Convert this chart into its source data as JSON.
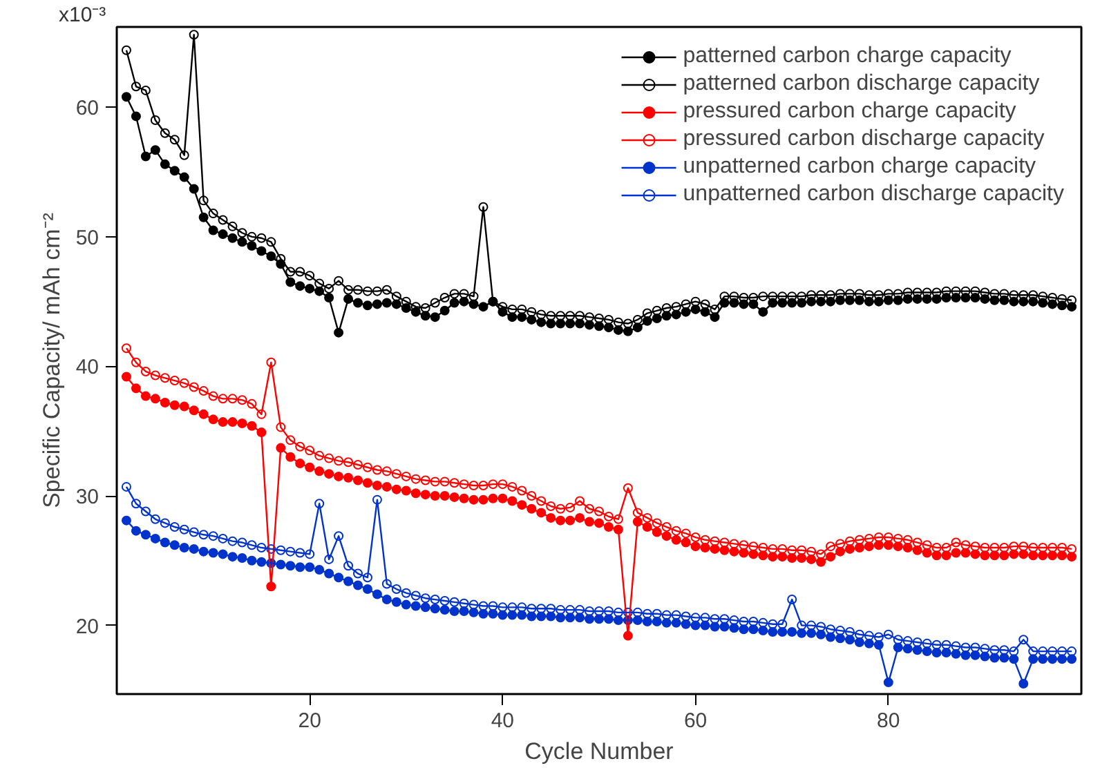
{
  "chart_data": {
    "type": "line",
    "xlabel": "Cycle Number",
    "ylabel": "Specific Capacity/ mAh cm⁻²",
    "xlim": [
      0,
      100
    ],
    "ylim": [
      14.7,
      66.2
    ],
    "xticks": [
      20,
      40,
      60,
      80
    ],
    "yticks": [
      20,
      30,
      40,
      50,
      60
    ],
    "annotations": [
      "x10⁻³"
    ],
    "grid": false,
    "legend": "top right",
    "line_style": "solid",
    "x": [
      1,
      2,
      3,
      4,
      5,
      6,
      7,
      8,
      9,
      10,
      11,
      12,
      13,
      14,
      15,
      16,
      17,
      18,
      19,
      20,
      21,
      22,
      23,
      24,
      25,
      26,
      27,
      28,
      29,
      30,
      31,
      32,
      33,
      34,
      35,
      36,
      37,
      38,
      39,
      40,
      41,
      42,
      43,
      44,
      45,
      46,
      47,
      48,
      49,
      50,
      51,
      52,
      53,
      54,
      55,
      56,
      57,
      58,
      59,
      60,
      61,
      62,
      63,
      64,
      65,
      66,
      67,
      68,
      69,
      70,
      71,
      72,
      73,
      74,
      75,
      76,
      77,
      78,
      79,
      80,
      81,
      82,
      83,
      84,
      85,
      86,
      87,
      88,
      89,
      90,
      91,
      92,
      93,
      94,
      95,
      96,
      97,
      98,
      99
    ],
    "series": [
      {
        "name": "patterned carbon charge capacity",
        "color": "#000000",
        "marker": "circle",
        "values": [
          60.8,
          59.3,
          56.2,
          56.7,
          55.6,
          55.1,
          54.6,
          53.7,
          51.5,
          50.5,
          50.2,
          49.9,
          49.6,
          49.3,
          48.9,
          48.5,
          47.9,
          46.5,
          46.2,
          46.0,
          45.8,
          45.3,
          42.6,
          45.2,
          44.9,
          44.7,
          44.8,
          44.9,
          44.8,
          44.5,
          44.2,
          43.9,
          43.8,
          44.3,
          44.9,
          45.0,
          44.8,
          44.6,
          45.0,
          44.2,
          43.8,
          43.8,
          43.6,
          43.4,
          43.3,
          43.3,
          43.3,
          43.3,
          43.2,
          43.1,
          43.0,
          42.8,
          42.7,
          43.0,
          43.5,
          43.7,
          43.9,
          44.0,
          44.2,
          44.4,
          44.2,
          43.8,
          44.9,
          44.9,
          44.8,
          44.8,
          44.2,
          44.9,
          44.9,
          44.9,
          44.9,
          45.0,
          45.0,
          45.0,
          45.1,
          45.1,
          45.1,
          45.0,
          45.0,
          45.1,
          45.1,
          45.2,
          45.2,
          45.2,
          45.2,
          45.3,
          45.3,
          45.3,
          45.3,
          45.2,
          45.1,
          45.1,
          45.0,
          45.0,
          45.0,
          44.9,
          44.8,
          44.7,
          44.6
        ]
      },
      {
        "name": "patterned carbon discharge capacity",
        "color": "#000000",
        "marker": "circle_open",
        "values": [
          64.4,
          61.6,
          61.3,
          59.0,
          58.0,
          57.5,
          56.3,
          65.6,
          52.8,
          51.8,
          51.3,
          50.8,
          50.3,
          50.0,
          49.9,
          49.6,
          48.3,
          47.3,
          47.3,
          47.0,
          46.4,
          46.0,
          46.6,
          45.9,
          45.9,
          45.8,
          45.8,
          45.9,
          45.4,
          45.0,
          44.6,
          44.5,
          44.9,
          45.3,
          45.6,
          45.6,
          45.4,
          52.3,
          45.0,
          44.6,
          44.4,
          44.4,
          44.2,
          44.0,
          43.9,
          43.9,
          43.9,
          43.9,
          43.8,
          43.7,
          43.6,
          43.4,
          43.3,
          43.6,
          44.1,
          44.3,
          44.5,
          44.6,
          44.8,
          45.0,
          44.8,
          44.4,
          45.4,
          45.4,
          45.3,
          45.3,
          45.4,
          45.4,
          45.4,
          45.4,
          45.4,
          45.5,
          45.5,
          45.5,
          45.6,
          45.6,
          45.6,
          45.5,
          45.5,
          45.6,
          45.6,
          45.7,
          45.7,
          45.7,
          45.7,
          45.8,
          45.8,
          45.8,
          45.8,
          45.7,
          45.6,
          45.6,
          45.5,
          45.5,
          45.5,
          45.4,
          45.3,
          45.2,
          45.1
        ]
      },
      {
        "name": "pressured carbon charge capacity",
        "color": "#ff0000",
        "marker": "circle",
        "values": [
          39.2,
          38.3,
          37.7,
          37.5,
          37.2,
          37.0,
          36.9,
          36.6,
          36.3,
          35.9,
          35.7,
          35.7,
          35.6,
          35.4,
          34.9,
          23.0,
          33.7,
          33.0,
          32.5,
          32.2,
          31.9,
          31.7,
          31.5,
          31.4,
          31.2,
          31.0,
          30.8,
          30.7,
          30.5,
          30.4,
          30.2,
          30.1,
          30.0,
          30.0,
          29.9,
          29.8,
          29.7,
          29.7,
          29.8,
          29.8,
          29.6,
          29.3,
          29.0,
          28.7,
          28.3,
          28.1,
          28.1,
          28.3,
          28.0,
          27.9,
          27.6,
          27.4,
          19.2,
          28.0,
          27.6,
          27.2,
          26.9,
          26.6,
          26.4,
          26.1,
          26.0,
          25.9,
          25.8,
          25.7,
          25.6,
          25.5,
          25.4,
          25.3,
          25.3,
          25.2,
          25.2,
          25.1,
          24.9,
          25.3,
          25.7,
          25.9,
          26.0,
          26.1,
          26.2,
          26.2,
          26.1,
          26.0,
          25.8,
          25.6,
          25.4,
          25.4,
          25.6,
          25.6,
          25.5,
          25.4,
          25.4,
          25.4,
          25.5,
          25.5,
          25.4,
          25.4,
          25.4,
          25.4,
          25.3
        ]
      },
      {
        "name": "pressured carbon discharge capacity",
        "color": "#ff0000",
        "marker": "circle_open",
        "values": [
          41.4,
          40.3,
          39.6,
          39.3,
          39.1,
          38.9,
          38.7,
          38.4,
          38.1,
          37.7,
          37.5,
          37.5,
          37.4,
          37.1,
          36.3,
          40.3,
          35.3,
          34.3,
          33.8,
          33.5,
          33.1,
          32.9,
          32.7,
          32.6,
          32.4,
          32.2,
          32.0,
          31.9,
          31.7,
          31.5,
          31.3,
          31.2,
          31.1,
          31.1,
          31.0,
          30.9,
          30.8,
          30.8,
          30.9,
          30.9,
          30.7,
          30.4,
          30.0,
          29.6,
          29.2,
          29.0,
          29.1,
          29.6,
          29.0,
          28.8,
          28.4,
          28.2,
          30.6,
          28.7,
          28.3,
          27.9,
          27.6,
          27.3,
          27.1,
          26.8,
          26.6,
          26.5,
          26.4,
          26.3,
          26.2,
          26.1,
          26.0,
          25.9,
          25.9,
          25.8,
          25.8,
          25.7,
          25.5,
          26.1,
          26.3,
          26.5,
          26.6,
          26.7,
          26.8,
          26.8,
          26.7,
          26.6,
          26.4,
          26.2,
          26.0,
          26.0,
          26.4,
          26.2,
          26.1,
          26.0,
          26.0,
          26.0,
          26.1,
          26.1,
          26.0,
          26.0,
          26.0,
          26.0,
          25.9
        ]
      },
      {
        "name": "unpatterned carbon charge capacity",
        "color": "#0033cc",
        "marker": "circle",
        "values": [
          28.1,
          27.3,
          27.0,
          26.7,
          26.4,
          26.2,
          26.0,
          25.9,
          25.7,
          25.6,
          25.5,
          25.3,
          25.2,
          25.0,
          24.9,
          24.8,
          24.7,
          24.6,
          24.5,
          24.5,
          24.3,
          24.0,
          23.7,
          23.4,
          23.1,
          22.8,
          22.4,
          22.0,
          21.8,
          21.6,
          21.5,
          21.4,
          21.3,
          21.2,
          21.1,
          21.1,
          21.0,
          20.9,
          20.9,
          20.8,
          20.8,
          20.8,
          20.7,
          20.7,
          20.7,
          20.6,
          20.6,
          20.6,
          20.5,
          20.5,
          20.5,
          20.4,
          20.4,
          20.4,
          20.3,
          20.3,
          20.2,
          20.2,
          20.1,
          20.0,
          20.0,
          19.9,
          19.9,
          19.8,
          19.7,
          19.7,
          19.6,
          19.5,
          19.5,
          19.5,
          19.4,
          19.4,
          19.3,
          19.1,
          19.0,
          18.9,
          18.7,
          18.6,
          18.5,
          15.6,
          18.3,
          18.2,
          18.1,
          18.0,
          17.9,
          17.9,
          17.8,
          17.7,
          17.7,
          17.6,
          17.5,
          17.5,
          17.4,
          15.5,
          17.4,
          17.4,
          17.4,
          17.4,
          17.4
        ]
      },
      {
        "name": "unpatterned carbon discharge capacity",
        "color": "#0033cc",
        "marker": "circle_open",
        "values": [
          30.7,
          29.4,
          28.8,
          28.2,
          27.9,
          27.6,
          27.4,
          27.2,
          27.0,
          26.9,
          26.7,
          26.5,
          26.4,
          26.2,
          26.0,
          25.9,
          25.8,
          25.7,
          25.6,
          25.5,
          29.4,
          25.1,
          26.9,
          24.6,
          24.0,
          23.7,
          29.7,
          23.2,
          22.8,
          22.5,
          22.3,
          22.1,
          22.0,
          21.9,
          21.8,
          21.7,
          21.6,
          21.5,
          21.5,
          21.4,
          21.4,
          21.4,
          21.3,
          21.3,
          21.3,
          21.2,
          21.2,
          21.2,
          21.1,
          21.1,
          21.1,
          21.0,
          21.0,
          21.0,
          20.9,
          20.9,
          20.8,
          20.8,
          20.7,
          20.6,
          20.6,
          20.5,
          20.5,
          20.4,
          20.3,
          20.3,
          20.2,
          20.1,
          20.1,
          22.0,
          20.0,
          20.0,
          19.9,
          19.7,
          19.6,
          19.5,
          19.3,
          19.2,
          19.1,
          19.3,
          18.9,
          18.8,
          18.7,
          18.6,
          18.5,
          18.5,
          18.4,
          18.3,
          18.3,
          18.2,
          18.1,
          18.1,
          18.0,
          18.9,
          18.0,
          18.0,
          18.0,
          18.0,
          18.0
        ]
      }
    ]
  }
}
